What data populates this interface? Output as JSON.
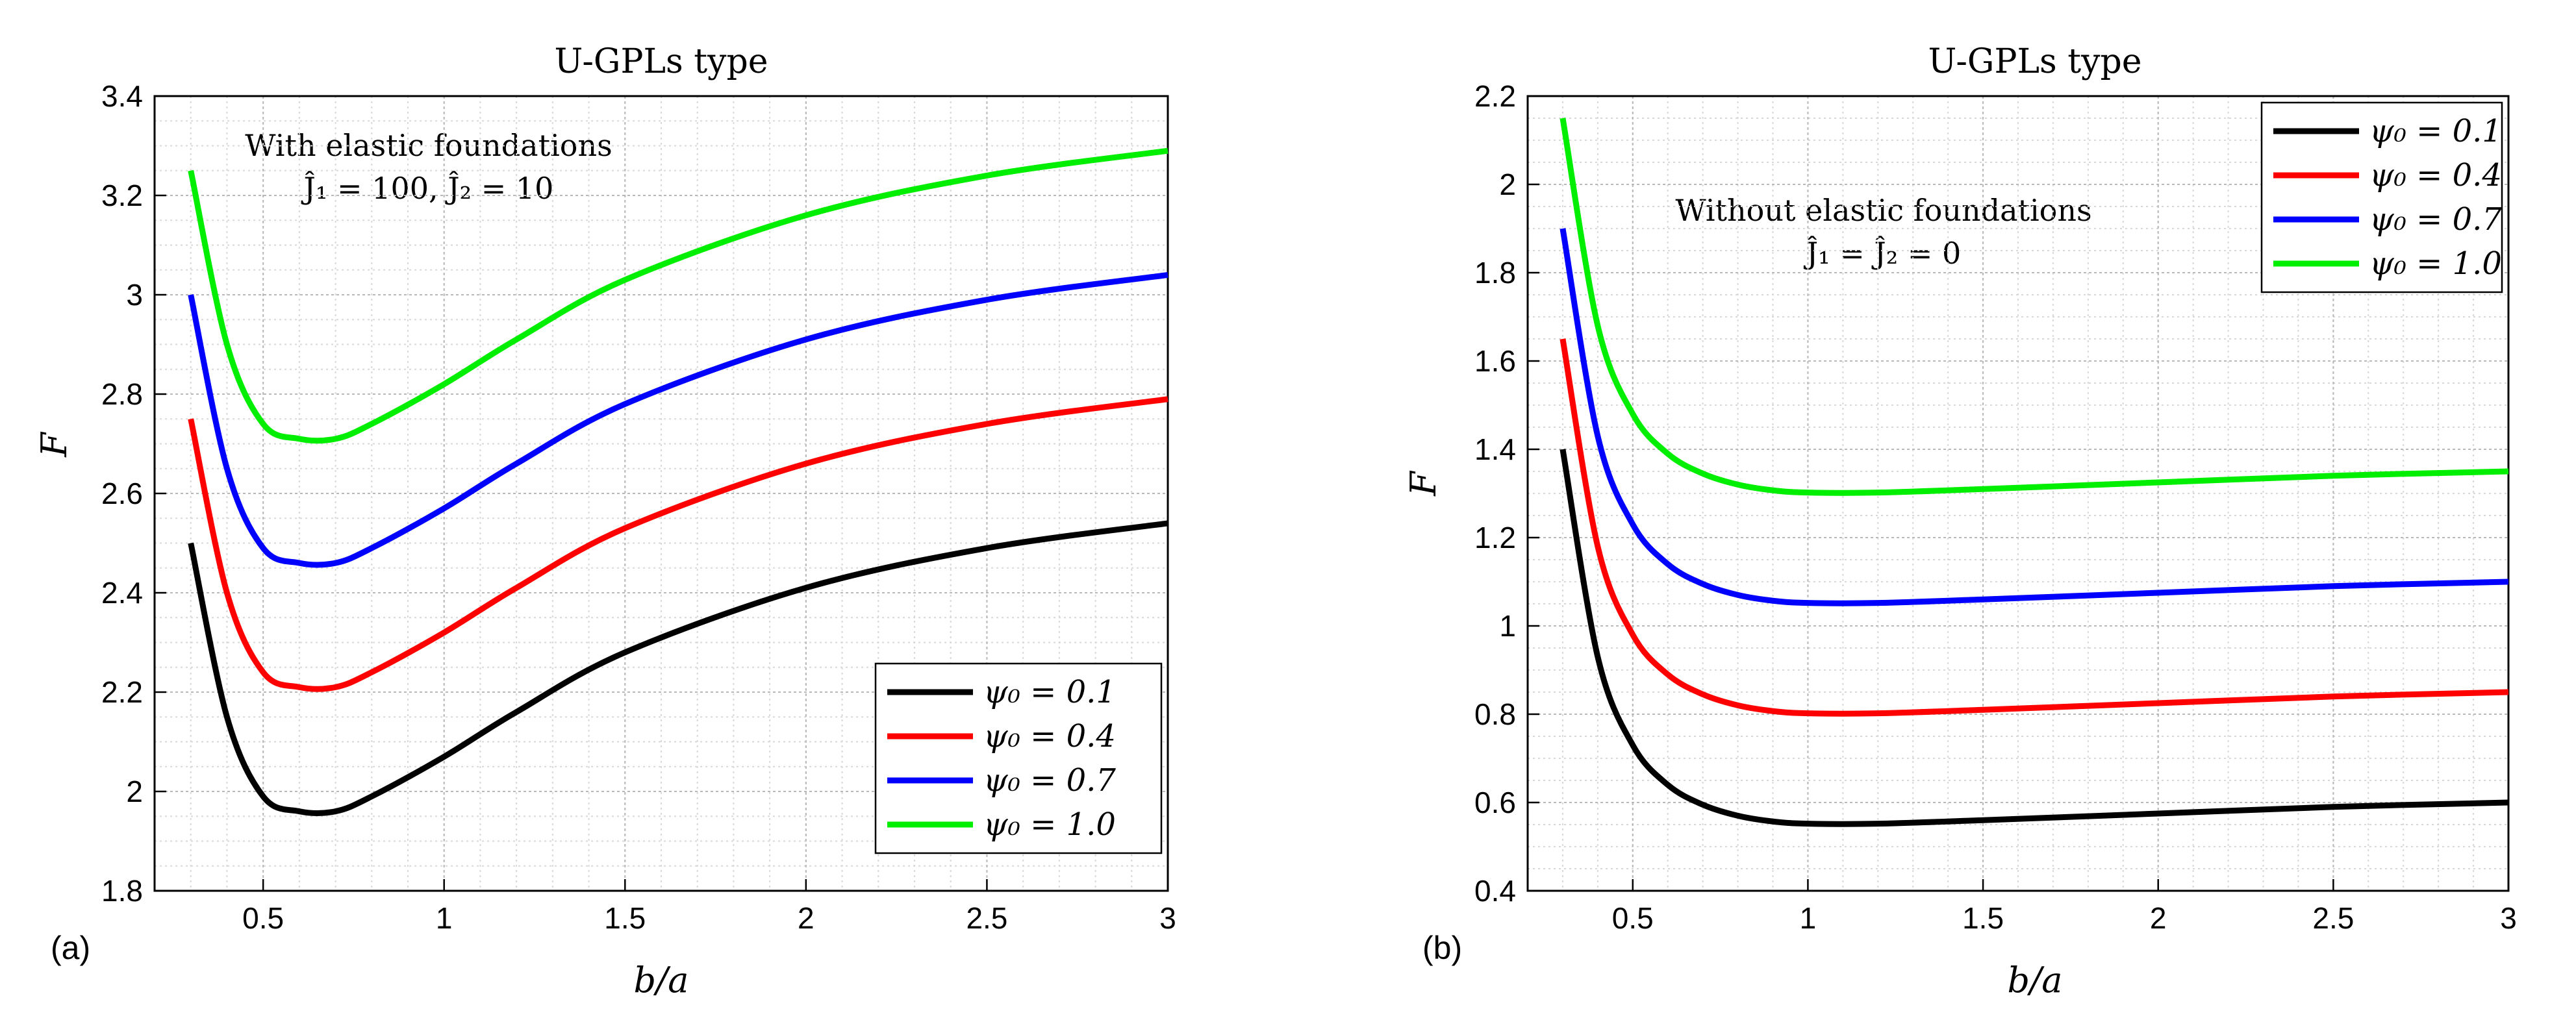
{
  "chart_data": [
    {
      "type": "line",
      "panel_label": "(a)",
      "title": "U-GPLs type",
      "xlabel": "b/a",
      "ylabel": "F",
      "xlim": [
        0.2,
        3.0
      ],
      "ylim": [
        1.8,
        3.4
      ],
      "xticks": [
        0.5,
        1,
        1.5,
        2,
        2.5,
        3
      ],
      "xtick_labels": [
        "0.5",
        "1",
        "1.5",
        "2",
        "2.5",
        "3"
      ],
      "yticks": [
        1.8,
        2.0,
        2.2,
        2.4,
        2.6,
        2.8,
        3.0,
        3.2,
        3.4
      ],
      "ytick_labels": [
        "1.8",
        "2",
        "2.2",
        "2.4",
        "2.6",
        "2.8",
        "3",
        "3.2",
        "3.4"
      ],
      "grid": true,
      "legend_position": "bottom-right",
      "annotation": [
        "With elastic foundations",
        "Ĵ₁ = 100,   Ĵ₂ = 10"
      ],
      "x": [
        0.3,
        0.4,
        0.5,
        0.6,
        0.7,
        0.8,
        1.0,
        1.2,
        1.5,
        2.0,
        2.5,
        3.0
      ],
      "series": [
        {
          "name": "ψ₀ = 0.1",
          "color": "#000000",
          "values": [
            2.5,
            2.15,
            1.99,
            1.96,
            1.96,
            1.99,
            2.07,
            2.16,
            2.28,
            2.41,
            2.49,
            2.54
          ]
        },
        {
          "name": "ψ₀ = 0.4",
          "color": "#ff0000",
          "values": [
            2.75,
            2.4,
            2.24,
            2.21,
            2.21,
            2.24,
            2.32,
            2.41,
            2.53,
            2.66,
            2.74,
            2.79
          ]
        },
        {
          "name": "ψ₀ = 0.7",
          "color": "#0000ff",
          "values": [
            3.0,
            2.65,
            2.49,
            2.46,
            2.46,
            2.49,
            2.57,
            2.66,
            2.78,
            2.91,
            2.99,
            3.04
          ]
        },
        {
          "name": "ψ₀ = 1.0",
          "color": "#00ee00",
          "values": [
            3.25,
            2.9,
            2.74,
            2.71,
            2.71,
            2.74,
            2.82,
            2.91,
            3.03,
            3.16,
            3.24,
            3.29
          ]
        }
      ]
    },
    {
      "type": "line",
      "panel_label": "(b)",
      "title": "U-GPLs type",
      "xlabel": "b/a",
      "ylabel": "F",
      "xlim": [
        0.2,
        3.0
      ],
      "ylim": [
        0.4,
        2.2
      ],
      "xticks": [
        0.5,
        1,
        1.5,
        2,
        2.5,
        3
      ],
      "xtick_labels": [
        "0.5",
        "1",
        "1.5",
        "2",
        "2.5",
        "3"
      ],
      "yticks": [
        0.4,
        0.6,
        0.8,
        1.0,
        1.2,
        1.4,
        1.6,
        1.8,
        2.0,
        2.2
      ],
      "ytick_labels": [
        "0.4",
        "0.6",
        "0.8",
        "1",
        "1.2",
        "1.4",
        "1.6",
        "1.8",
        "2",
        "2.2"
      ],
      "grid": true,
      "legend_position": "top-right",
      "annotation": [
        "Without elastic foundations",
        "Ĵ₁ = Ĵ₂ = 0"
      ],
      "x": [
        0.3,
        0.4,
        0.5,
        0.6,
        0.7,
        0.8,
        0.9,
        1.0,
        1.2,
        1.5,
        2.0,
        2.5,
        3.0
      ],
      "series": [
        {
          "name": "ψ₀ = 0.1",
          "color": "#000000",
          "values": [
            1.4,
            0.93,
            0.73,
            0.64,
            0.595,
            0.57,
            0.557,
            0.552,
            0.552,
            0.56,
            0.575,
            0.59,
            0.6
          ]
        },
        {
          "name": "ψ₀ = 0.4",
          "color": "#ff0000",
          "values": [
            1.65,
            1.18,
            0.98,
            0.89,
            0.845,
            0.82,
            0.807,
            0.802,
            0.802,
            0.81,
            0.825,
            0.84,
            0.85
          ]
        },
        {
          "name": "ψ₀ = 0.7",
          "color": "#0000ff",
          "values": [
            1.9,
            1.43,
            1.23,
            1.14,
            1.095,
            1.07,
            1.057,
            1.052,
            1.052,
            1.06,
            1.075,
            1.09,
            1.1
          ]
        },
        {
          "name": "ψ₀ = 1.0",
          "color": "#00ee00",
          "values": [
            2.15,
            1.68,
            1.48,
            1.39,
            1.345,
            1.32,
            1.307,
            1.302,
            1.302,
            1.31,
            1.325,
            1.34,
            1.35
          ]
        }
      ]
    }
  ]
}
